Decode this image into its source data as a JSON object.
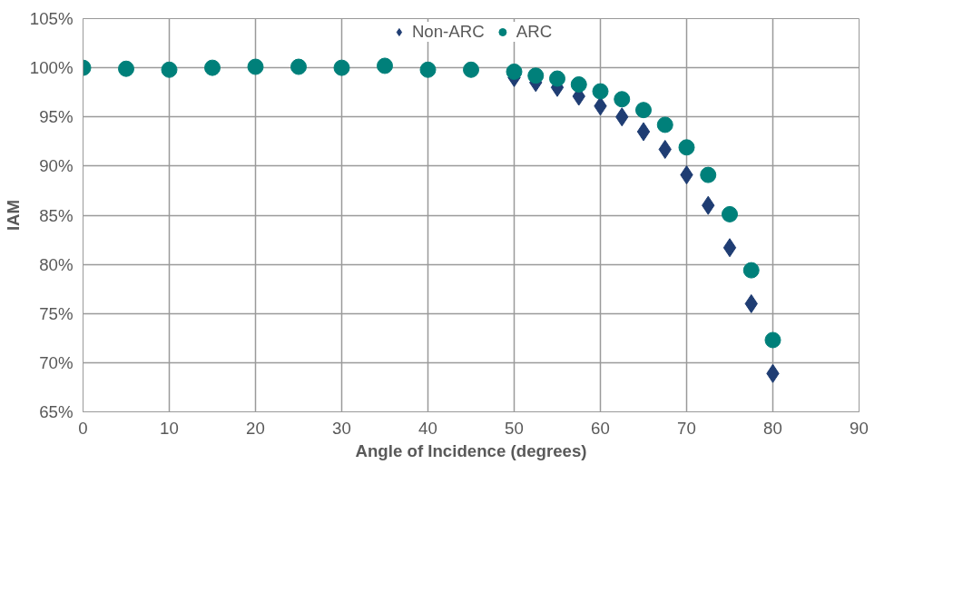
{
  "chart_data": {
    "type": "scatter",
    "xlabel": "Angle of Incidence (degrees)",
    "ylabel": "IAM",
    "xlim": [
      0,
      90
    ],
    "xticks": [
      0,
      10,
      20,
      30,
      40,
      50,
      60,
      70,
      80,
      90
    ],
    "ylim": [
      65,
      105
    ],
    "yticks": [
      {
        "value": 65,
        "label": "65%"
      },
      {
        "value": 70,
        "label": "70%"
      },
      {
        "value": 75,
        "label": "75%"
      },
      {
        "value": 80,
        "label": "80%"
      },
      {
        "value": 85,
        "label": "85%"
      },
      {
        "value": 90,
        "label": "90%"
      },
      {
        "value": 95,
        "label": "95%"
      },
      {
        "value": 100,
        "label": "100%"
      },
      {
        "value": 105,
        "label": "105%"
      }
    ],
    "grid": true,
    "legend": "top",
    "series": [
      {
        "name": "Non-ARC",
        "color": "#1f3d73",
        "marker": "diamond",
        "x": [
          50,
          52.5,
          55,
          57.5,
          60,
          62.5,
          65,
          67.5,
          70,
          72.5,
          75,
          77.5,
          80
        ],
        "values": [
          99.0,
          98.5,
          98.0,
          97.1,
          96.1,
          95.0,
          93.5,
          91.7,
          89.1,
          86.0,
          81.7,
          76.0,
          68.9
        ]
      },
      {
        "name": "ARC",
        "color": "#00807a",
        "marker": "circle",
        "x": [
          0,
          5,
          10,
          15,
          20,
          25,
          30,
          35,
          40,
          45,
          50,
          52.5,
          55,
          57.5,
          60,
          62.5,
          65,
          67.5,
          70,
          72.5,
          75,
          77.5,
          80
        ],
        "values": [
          100,
          99.9,
          99.8,
          100,
          100.1,
          100.1,
          100,
          100.2,
          99.8,
          99.8,
          99.6,
          99.2,
          98.9,
          98.3,
          97.6,
          96.8,
          95.7,
          94.2,
          91.9,
          89.1,
          85.1,
          79.4,
          72.3
        ]
      }
    ]
  }
}
